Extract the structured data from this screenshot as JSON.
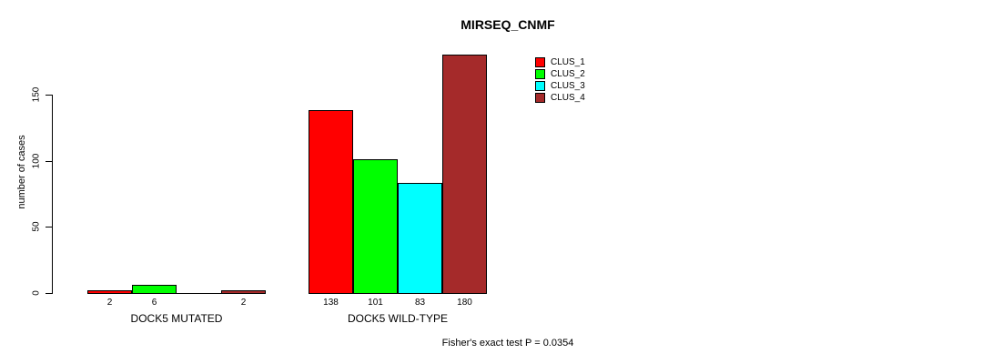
{
  "title": "MIRSEQ_CNMF",
  "y_axis": {
    "label": "number of cases"
  },
  "annotation": "Fisher's exact test P = 0.0354",
  "chart_data": {
    "type": "bar",
    "title": "MIRSEQ_CNMF",
    "xlabel": "",
    "ylabel": "number of cases",
    "ylim": [
      0,
      180
    ],
    "yticks": [
      0,
      50,
      100,
      150
    ],
    "grid": false,
    "legend_position": "top-right",
    "categories": [
      "DOCK5 MUTATED",
      "DOCK5 WILD-TYPE"
    ],
    "series": [
      {
        "name": "CLUS_1",
        "color": "#FF0000",
        "values": [
          2,
          138
        ]
      },
      {
        "name": "CLUS_2",
        "color": "#00FF00",
        "values": [
          6,
          101
        ]
      },
      {
        "name": "CLUS_3",
        "color": "#00FFFF",
        "values": [
          0,
          83
        ]
      },
      {
        "name": "CLUS_4",
        "color": "#A52A2A",
        "values": [
          2,
          180
        ]
      }
    ],
    "bar_value_labels": [
      [
        "2",
        "6",
        "",
        "2"
      ],
      [
        "138",
        "101",
        "83",
        "180"
      ]
    ],
    "annotation": "Fisher's exact test P = 0.0354"
  }
}
